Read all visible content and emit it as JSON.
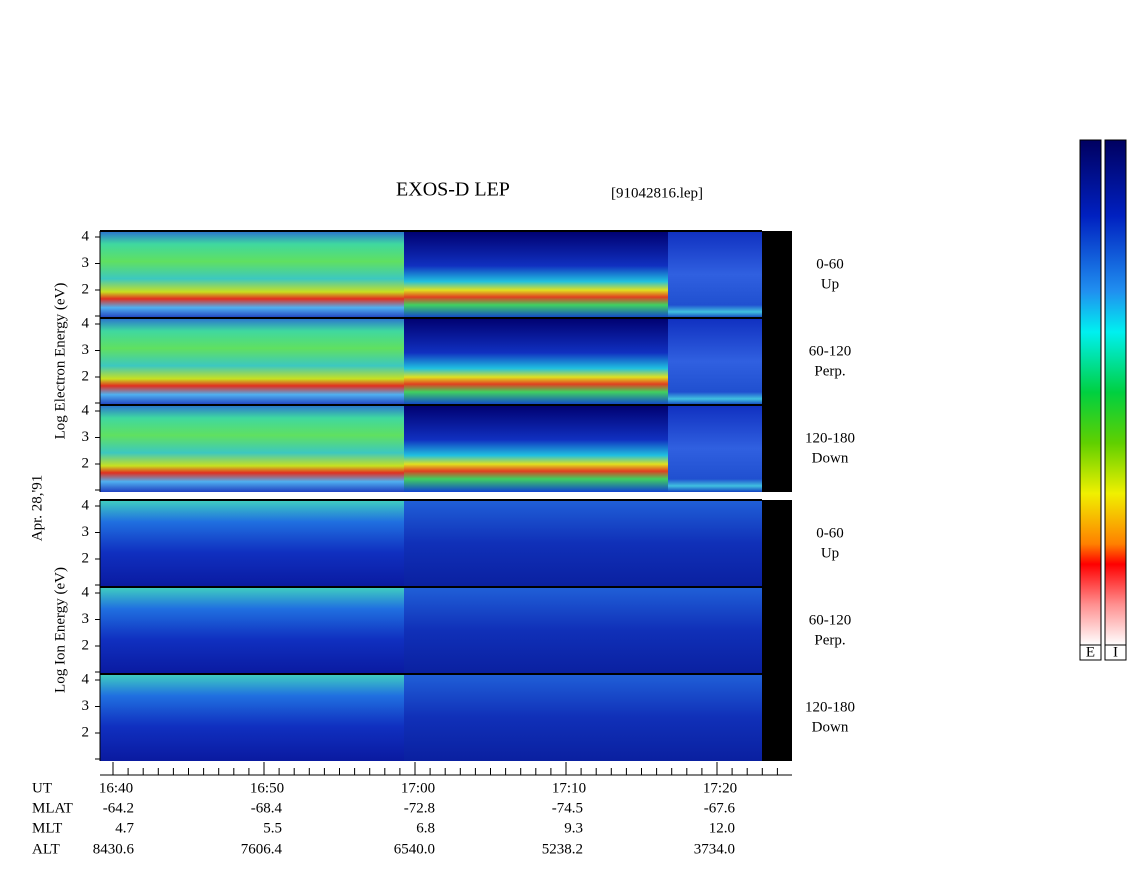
{
  "header": {
    "title": "EXOS-D LEP",
    "file": "[91042816.lep]"
  },
  "side_label": "Apr. 28,'91",
  "groups": [
    {
      "axis_label": "Log Electron Energy (eV)",
      "panels": [
        {
          "range": "0-60",
          "direction": "Up"
        },
        {
          "range": "60-120",
          "direction": "Perp."
        },
        {
          "range": "120-180",
          "direction": "Down"
        }
      ]
    },
    {
      "axis_label": "Log Ion Energy (eV)",
      "panels": [
        {
          "range": "0-60",
          "direction": "Up"
        },
        {
          "range": "60-120",
          "direction": "Perp."
        },
        {
          "range": "120-180",
          "direction": "Down"
        }
      ]
    }
  ],
  "yticks": [
    "4",
    "3",
    "2"
  ],
  "table": {
    "rows": [
      [
        "UT",
        "16:40",
        "16:50",
        "17:00",
        "17:10",
        "17:20"
      ],
      [
        "MLAT",
        "-64.2",
        "-68.4",
        "-72.8",
        "-74.5",
        "-67.6"
      ],
      [
        "MLT",
        "4.7",
        "5.5",
        "6.8",
        "9.3",
        "12.0"
      ],
      [
        "ALT",
        "8430.6",
        "7606.4",
        "6540.0",
        "5238.2",
        "3734.0"
      ]
    ]
  },
  "colorbar_labels": [
    "E",
    "I"
  ]
}
